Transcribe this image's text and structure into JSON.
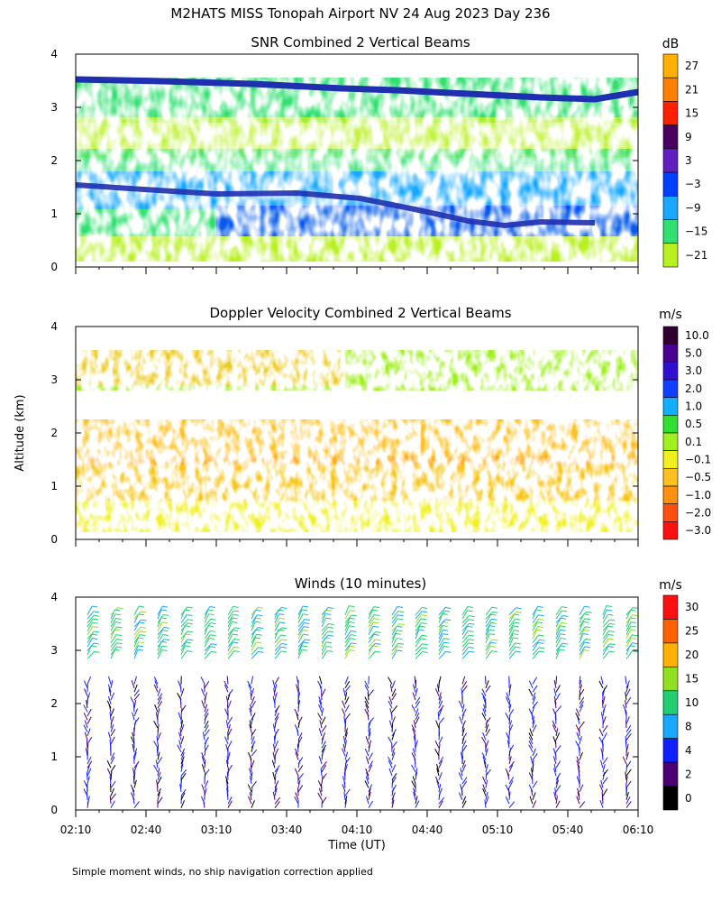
{
  "figure_title": "M2HATS MISS Tonopah Airport NV  24 Aug 2023 Day 236",
  "footnote": "Simple moment winds, no ship navigation correction applied",
  "shared_ylabel": "Altitude (km)",
  "chart_data": [
    {
      "id": "snr",
      "type": "heatmap",
      "title": "SNR Combined 2 Vertical Beams",
      "xlabel": "",
      "ylabel": "Altitude (km)",
      "ylim": [
        0,
        4
      ],
      "yticks": [
        "0",
        "1",
        "2",
        "3",
        "4"
      ],
      "xlim_minutes": [
        130,
        370
      ],
      "colorbar": {
        "unit": "dB",
        "labels": [
          "27",
          "21",
          "15",
          "9",
          "3",
          "−3",
          "−9",
          "−15",
          "−21"
        ],
        "colors": [
          "#ffb000",
          "#ff8000",
          "#ff2000",
          "#4a0060",
          "#6020c0",
          "#0040ff",
          "#18a8ff",
          "#30e070",
          "#b8f020"
        ]
      },
      "layers": [
        {
          "name": "strong return band",
          "color": "#1e2fb0",
          "z_bottom_km": 3.25,
          "z_top_km": 3.45,
          "dB": -3
        },
        {
          "name": "upper weak layer",
          "color": "#30e070",
          "z_bottom_km": 2.8,
          "z_top_km": 3.5,
          "dB": -15
        },
        {
          "name": "mid layer",
          "color": "#18a8ff",
          "z_bottom_km": 1.1,
          "z_top_km": 1.8,
          "dB": -9
        },
        {
          "name": "boundary layer",
          "color": "#0040ff",
          "z_bottom_km": 0.15,
          "z_top_km": 1.2,
          "dB": -3
        }
      ]
    },
    {
      "id": "doppler",
      "type": "heatmap",
      "title": "Doppler Velocity Combined 2 Vertical Beams",
      "xlabel": "",
      "ylabel": "Altitude (km)",
      "ylim": [
        0,
        4
      ],
      "yticks": [
        "0",
        "1",
        "2",
        "3",
        "4"
      ],
      "xlim_minutes": [
        130,
        370
      ],
      "colorbar": {
        "unit": "m/s",
        "labels": [
          "10.0",
          "5.0",
          "3.0",
          "2.0",
          "1.0",
          "0.5",
          "0.1",
          "−0.1",
          "−0.5",
          "−1.0",
          "−2.0",
          "−3.0"
        ],
        "colors": [
          "#300030",
          "#4a0090",
          "#3010d0",
          "#1040ff",
          "#10b0ff",
          "#30e030",
          "#a0f020",
          "#f0f020",
          "#ffc020",
          "#ff9010",
          "#ff5010",
          "#ff1010"
        ]
      },
      "layers": [
        {
          "name": "upper layer",
          "color": "#a0f020",
          "z_bottom_km": 2.8,
          "z_top_km": 3.5,
          "ms": 0.3
        },
        {
          "name": "mid layer",
          "color": "#ffc020",
          "z_bottom_km": 1.0,
          "z_top_km": 1.8,
          "ms": -0.5
        },
        {
          "name": "boundary layer",
          "color": "#f0f020",
          "z_bottom_km": 0.1,
          "z_top_km": 1.0,
          "ms": -0.2
        }
      ]
    },
    {
      "id": "winds",
      "type": "scatter",
      "title": "Winds (10 minutes)",
      "xlabel": "Time (UT)",
      "ylabel": "Altitude (km)",
      "ylim": [
        0,
        4
      ],
      "yticks": [
        "0",
        "1",
        "2",
        "3",
        "4"
      ],
      "xlim_minutes": [
        130,
        370
      ],
      "xticks": [
        "02:10",
        "02:40",
        "03:10",
        "03:40",
        "04:10",
        "04:40",
        "05:10",
        "05:40",
        "06:10"
      ],
      "colorbar": {
        "unit": "m/s",
        "labels": [
          "30",
          "25",
          "20",
          "15",
          "10",
          "8",
          "4",
          "2",
          "0"
        ],
        "colors": [
          "#ff1010",
          "#ff6000",
          "#ffb000",
          "#90e020",
          "#20d070",
          "#18a8ff",
          "#1020ff",
          "#4a0070",
          "#000000"
        ]
      },
      "profile_times_min": [
        135,
        145,
        155,
        165,
        175,
        185,
        195,
        205,
        215,
        225,
        235,
        245,
        255,
        265,
        275,
        285,
        295,
        305,
        315,
        325,
        335,
        345,
        355,
        365
      ],
      "upper_layer": {
        "z_bottom_km": 2.8,
        "z_top_km": 3.7,
        "speed_ms": 12
      },
      "lower_layer": {
        "z_bottom_km": 0.0,
        "z_top_km": 2.4,
        "speed_ms": 4
      }
    }
  ]
}
